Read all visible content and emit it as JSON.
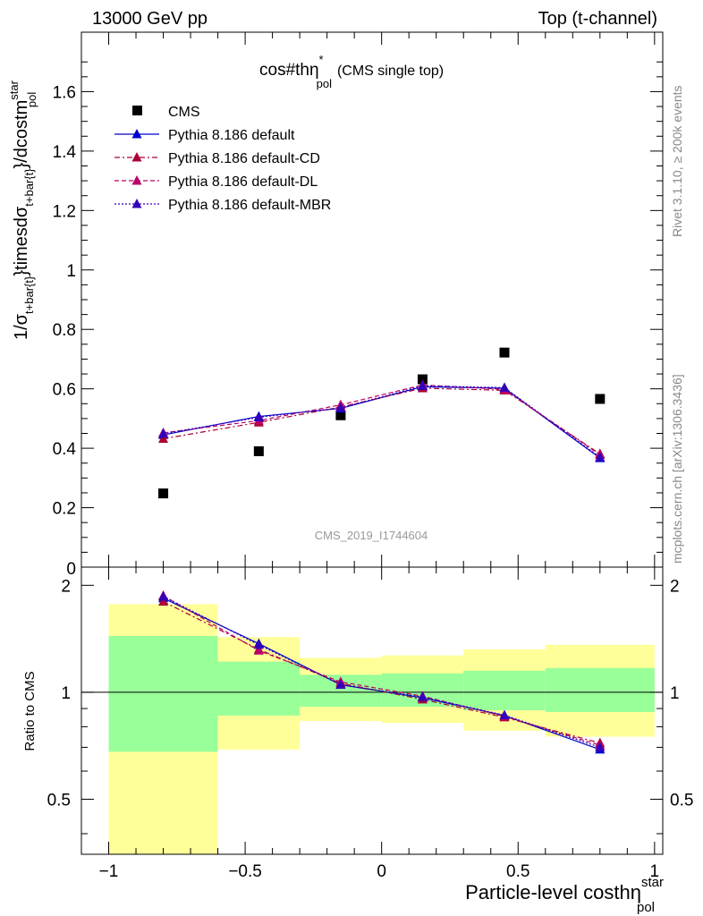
{
  "header": {
    "left": "13000 GeV pp",
    "right": "Top (t-channel)"
  },
  "side_labels": {
    "rivet": "Rivet 3.1.10, ≥ 200k events",
    "mcplots": "mcplots.cern.ch [arXiv:1306.3436]"
  },
  "chart_data": [
    {
      "type": "scatter",
      "title_main": "cos#thη",
      "title_sup": "*",
      "title_sub": "pol",
      "title_suffix": "(CMS single top)",
      "ylabel_parts": {
        "a": "1/σ",
        "a_sub": "t+bar{t}",
        "b": "}timesdσ",
        "b_sub": "t+bar{t}",
        "c": "}/dcostm",
        "c_sup": "star",
        "c_sub": "pol"
      },
      "watermark": "CMS_2019_I1744604",
      "xlim": [
        -1.1,
        1.03
      ],
      "ylim": [
        0,
        1.8
      ],
      "x_ticks": [
        -1,
        -0.5,
        0,
        0.5,
        1
      ],
      "y_ticks": [
        0.2,
        0.4,
        0.6,
        0.8,
        1,
        1.2,
        1.4,
        1.6
      ],
      "y_tick_labels": [
        "0.2",
        "0.4",
        "0.6",
        "0.8",
        "1",
        "1.2",
        "1.4",
        "1.6"
      ],
      "y_zero_label": "0",
      "legend_position": "top-left",
      "x": [
        -0.8,
        -0.45,
        -0.15,
        0.15,
        0.45,
        0.8
      ],
      "series": [
        {
          "name": "CMS",
          "style": "data",
          "color": "#000000",
          "values": [
            0.248,
            0.39,
            0.511,
            0.632,
            0.722,
            0.566
          ]
        },
        {
          "name": "Pythia 8.186 default",
          "style": "solid",
          "color": "#0000cc",
          "values": [
            0.445,
            0.507,
            0.534,
            0.607,
            0.602,
            0.367
          ]
        },
        {
          "name": "Pythia 8.186 default-CD",
          "style": "dashdot",
          "color": "#aa0033",
          "values": [
            0.432,
            0.487,
            0.539,
            0.602,
            0.595,
            0.381
          ]
        },
        {
          "name": "Pythia 8.186 default-DL",
          "style": "dashed",
          "color": "#bb0066",
          "values": [
            0.452,
            0.493,
            0.546,
            0.613,
            0.598,
            0.378
          ]
        },
        {
          "name": "Pythia 8.186 default-MBR",
          "style": "dotted",
          "color": "#3300bb",
          "values": [
            0.449,
            0.504,
            0.536,
            0.61,
            0.604,
            0.37
          ]
        }
      ]
    },
    {
      "type": "line",
      "ylabel": "Ratio to CMS",
      "xlabel_main": "Particle-level costhη",
      "xlabel_sup": "star",
      "xlabel_sub": "pol",
      "xlim": [
        -1.1,
        1.03
      ],
      "ylim": [
        0.35,
        2.25
      ],
      "x_ticks": [
        -1,
        -0.5,
        0,
        0.5,
        1
      ],
      "x_tick_labels": [
        "−1",
        "−0.5",
        "0",
        "0.5",
        "1"
      ],
      "y_ticks": [
        0.5,
        1,
        2
      ],
      "y_tick_labels": [
        "0.5",
        "1",
        "2"
      ],
      "bands": [
        {
          "x0": -1.0,
          "x1": -0.6,
          "green": [
            0.68,
            1.44
          ],
          "yellow": [
            0.35,
            1.77
          ]
        },
        {
          "x0": -0.6,
          "x1": -0.3,
          "green": [
            0.86,
            1.22
          ],
          "yellow": [
            0.69,
            1.43
          ]
        },
        {
          "x0": -0.3,
          "x1": 0.0,
          "green": [
            0.91,
            1.12
          ],
          "yellow": [
            0.83,
            1.25
          ]
        },
        {
          "x0": 0.0,
          "x1": 0.3,
          "green": [
            0.91,
            1.13
          ],
          "yellow": [
            0.82,
            1.27
          ]
        },
        {
          "x0": 0.3,
          "x1": 0.6,
          "green": [
            0.89,
            1.15
          ],
          "yellow": [
            0.78,
            1.32
          ]
        },
        {
          "x0": 0.6,
          "x1": 1.0,
          "green": [
            0.88,
            1.17
          ],
          "yellow": [
            0.75,
            1.36
          ]
        }
      ],
      "x": [
        -0.8,
        -0.45,
        -0.15,
        0.15,
        0.45,
        0.8
      ],
      "series": [
        {
          "name": "Pythia 8.186 default",
          "style": "solid",
          "color": "#0000cc",
          "values": [
            1.84,
            1.37,
            1.05,
            0.965,
            0.86,
            0.69
          ]
        },
        {
          "name": "Pythia 8.186 default-CD",
          "style": "dashdot",
          "color": "#aa0033",
          "values": [
            1.8,
            1.32,
            1.06,
            0.955,
            0.85,
            0.72
          ]
        },
        {
          "name": "Pythia 8.186 default-DL",
          "style": "dashed",
          "color": "#bb0066",
          "values": [
            1.87,
            1.31,
            1.07,
            0.975,
            0.855,
            0.71
          ]
        },
        {
          "name": "Pythia 8.186 default-MBR",
          "style": "dotted",
          "color": "#3300bb",
          "values": [
            1.86,
            1.36,
            1.05,
            0.97,
            0.862,
            0.7
          ]
        }
      ]
    }
  ]
}
